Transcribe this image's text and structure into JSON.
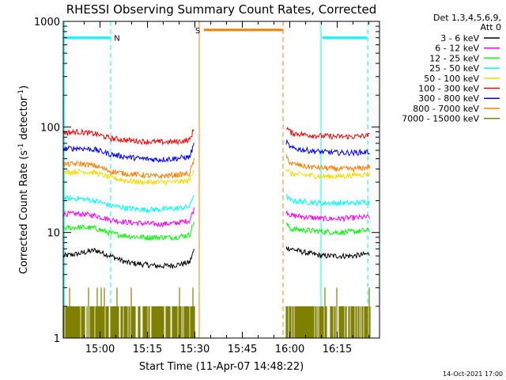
{
  "chart_data": {
    "type": "line",
    "title": "RHESSI Observing Summary Count Rates, Corrected",
    "xlabel": "Start Time (11-Apr-07 14:48:22)",
    "ylabel_main": "Corrected Count Rate (s",
    "ylabel_sup1": "-1",
    "ylabel_mid": " detector",
    "ylabel_sup2": "-1",
    "ylabel_end": ")",
    "yscale": "log",
    "ylim": [
      1,
      1000
    ],
    "xlim_minutes": [
      0,
      100
    ],
    "x_ticks": [
      {
        "label": "15:00",
        "minute": 11.63
      },
      {
        "label": "15:15",
        "minute": 26.63
      },
      {
        "label": "15:30",
        "minute": 41.63
      },
      {
        "label": "15:45",
        "minute": 56.63
      },
      {
        "label": "16:00",
        "minute": 71.63
      },
      {
        "label": "16:15",
        "minute": 86.63
      }
    ],
    "y_ticks": [
      {
        "label": "1",
        "value": 1
      },
      {
        "label": "10",
        "value": 10
      },
      {
        "label": "100",
        "value": 100
      },
      {
        "label": "1000",
        "value": 1000
      }
    ],
    "legend_header": [
      "Det 1,3,4,5,6,9,",
      "Att 0"
    ],
    "legend_placement": "right",
    "series": [
      {
        "name": "3 - 6 keV",
        "color": "#000000",
        "x": [
          0,
          5,
          10,
          15,
          20,
          25,
          30,
          35,
          40,
          41.5,
          70.5,
          72,
          77,
          82,
          87,
          92,
          97
        ],
        "y": [
          6,
          6.3,
          6.8,
          6,
          5.2,
          5,
          4.8,
          4.9,
          5.2,
          7,
          7.2,
          7,
          6.4,
          6,
          6,
          6,
          6.3
        ]
      },
      {
        "name": "6 - 12 keV",
        "color": "#ff00ff",
        "x": [
          0,
          5,
          10,
          15,
          20,
          25,
          30,
          35,
          40,
          41.5,
          70.5,
          72,
          77,
          82,
          87,
          92,
          97
        ],
        "y": [
          15,
          15,
          14.5,
          13.2,
          12.5,
          12.2,
          12,
          12.2,
          13,
          17,
          16,
          14.5,
          14,
          13.5,
          13.5,
          13.8,
          14
        ]
      },
      {
        "name": "12 - 25 keV",
        "color": "#00ff00",
        "x": [
          0,
          5,
          10,
          15,
          20,
          25,
          30,
          35,
          40,
          41.5,
          70.5,
          72,
          77,
          82,
          87,
          92,
          97
        ],
        "y": [
          11,
          11.2,
          11,
          9.8,
          9.3,
          9,
          9,
          9,
          9.5,
          13,
          12,
          10.8,
          10.5,
          10.2,
          10,
          10.2,
          10.5
        ]
      },
      {
        "name": "25 - 50 keV",
        "color": "#00ffff",
        "x": [
          0,
          5,
          10,
          15,
          20,
          25,
          30,
          35,
          40,
          41.5,
          70.5,
          72,
          77,
          82,
          87,
          92,
          97
        ],
        "y": [
          21,
          21,
          20,
          18,
          17,
          16.5,
          16.5,
          16.8,
          17.5,
          24,
          22,
          20,
          19.5,
          19,
          19,
          19,
          19.5
        ]
      },
      {
        "name": "50 - 100 keV",
        "color": "#ffd700",
        "x": [
          0,
          5,
          10,
          15,
          20,
          25,
          30,
          35,
          40,
          41.5,
          70.5,
          72,
          77,
          82,
          87,
          92,
          97
        ],
        "y": [
          37,
          38,
          37,
          33,
          31,
          30,
          30,
          30,
          31,
          42,
          40,
          36,
          35,
          34,
          34,
          35,
          36
        ]
      },
      {
        "name": "100 - 300 keV",
        "color": "#ff0000",
        "x": [
          0,
          5,
          10,
          15,
          20,
          25,
          30,
          35,
          40,
          41.5,
          70.5,
          72,
          77,
          82,
          87,
          92,
          97
        ],
        "y": [
          88,
          90,
          86,
          78,
          75,
          73,
          72,
          72,
          75,
          98,
          100,
          88,
          84,
          82,
          81,
          81,
          83
        ]
      },
      {
        "name": "300 - 800 keV",
        "color": "#0000ff",
        "x": [
          0,
          5,
          10,
          15,
          20,
          25,
          30,
          35,
          40,
          41.5,
          70.5,
          72,
          77,
          82,
          87,
          92,
          97
        ],
        "y": [
          62,
          63,
          61,
          55,
          52,
          50,
          49,
          50,
          52,
          70,
          72,
          63,
          60,
          58,
          57,
          57,
          58
        ]
      },
      {
        "name": "800 - 7000 keV",
        "color": "#ff8000",
        "x": [
          0,
          5,
          10,
          15,
          20,
          25,
          30,
          35,
          40,
          41.5,
          70.5,
          72,
          77,
          82,
          87,
          92,
          97
        ],
        "y": [
          44,
          45,
          43,
          38,
          36,
          35,
          34,
          35,
          36,
          50,
          52,
          45,
          42,
          41,
          40,
          40,
          42
        ]
      },
      {
        "name": "7000 - 15000 keV",
        "color": "#808000",
        "x": [
          0,
          41.5,
          70.5,
          97
        ],
        "y": [
          2,
          2,
          2,
          2
        ]
      }
    ],
    "flag_bars": [
      {
        "label": "N",
        "color": "#00ffff",
        "x0": 0.5,
        "x1": 15,
        "value": 700
      },
      {
        "label": "",
        "color": "#00ffff",
        "x0": 82,
        "x1": 96,
        "value": 700
      },
      {
        "label": "S",
        "color": "#ff8000",
        "x0": 44.5,
        "x1": 69.5,
        "value": 830
      }
    ],
    "vertical_markers": [
      {
        "color": "#00ffff",
        "style": "solid",
        "minute": 0.3
      },
      {
        "color": "#00ffff",
        "style": "dashed",
        "minute": 15
      },
      {
        "color": "#ff8000",
        "style": "solid",
        "minute": 43
      },
      {
        "color": "#ff8000",
        "style": "dashed",
        "minute": 69.5
      },
      {
        "color": "#00ffff",
        "style": "solid",
        "minute": 81.5
      },
      {
        "color": "#00ffff",
        "style": "dashed",
        "minute": 96.3
      }
    ],
    "data_gap_minutes": [
      41.5,
      70.5
    ],
    "grid": false,
    "footer_stamp": "14-Oct-2021 17:00"
  }
}
